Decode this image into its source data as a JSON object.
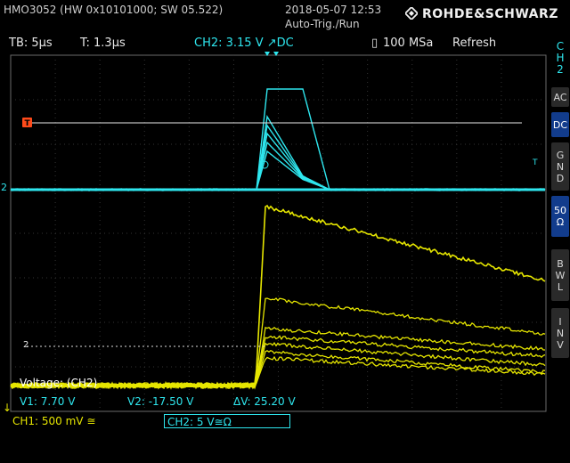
{
  "header": {
    "device": "HMO3052 (HW 0x10101000; SW 05.522)",
    "datetime": "2018-05-07 12:53",
    "trigger_mode": "Auto-Trig./Run",
    "brand": "ROHDE&SCHWARZ"
  },
  "status": {
    "timebase": "TB: 5µs",
    "trigger_time": "T: 1.3µs",
    "trigger_level": "CH2: 3.15 V ↗DC",
    "sample_rate": "100 MSa",
    "acq_mode": "Refresh"
  },
  "side_panel": {
    "channel": [
      "C",
      "H",
      "2"
    ],
    "buttons": [
      {
        "lines": [
          "AC"
        ],
        "active": false
      },
      {
        "lines": [
          "DC"
        ],
        "active": true
      },
      {
        "lines": [
          "G",
          "N",
          "D"
        ],
        "active": false
      },
      {
        "lines": [
          "50",
          "Ω"
        ],
        "active": true
      },
      {
        "lines": [
          "B",
          "W",
          "L"
        ],
        "active": false
      },
      {
        "lines": [
          "I",
          "N",
          "V"
        ],
        "active": false
      }
    ]
  },
  "cursor": {
    "title": "Voltage: (CH2)",
    "v1": "V1: 7.70 V",
    "v2": "V2: -17.50 V",
    "dv": "ΔV: 25.20 V"
  },
  "channels": {
    "ch1": "CH1: 500 mV ≅",
    "ch2": "CH2: 5 V≅Ω"
  },
  "markers": {
    "ch2_ground": "2",
    "ch2_ref": "2",
    "trigger_pos": "T",
    "ch1_ground": "↓"
  },
  "colors": {
    "ch1": "#e6e600",
    "ch2": "#2ee6ee",
    "trigger_marker": "#ff4a1a",
    "panel_active": "#123c8c",
    "grid": "#3a3a3a"
  }
}
